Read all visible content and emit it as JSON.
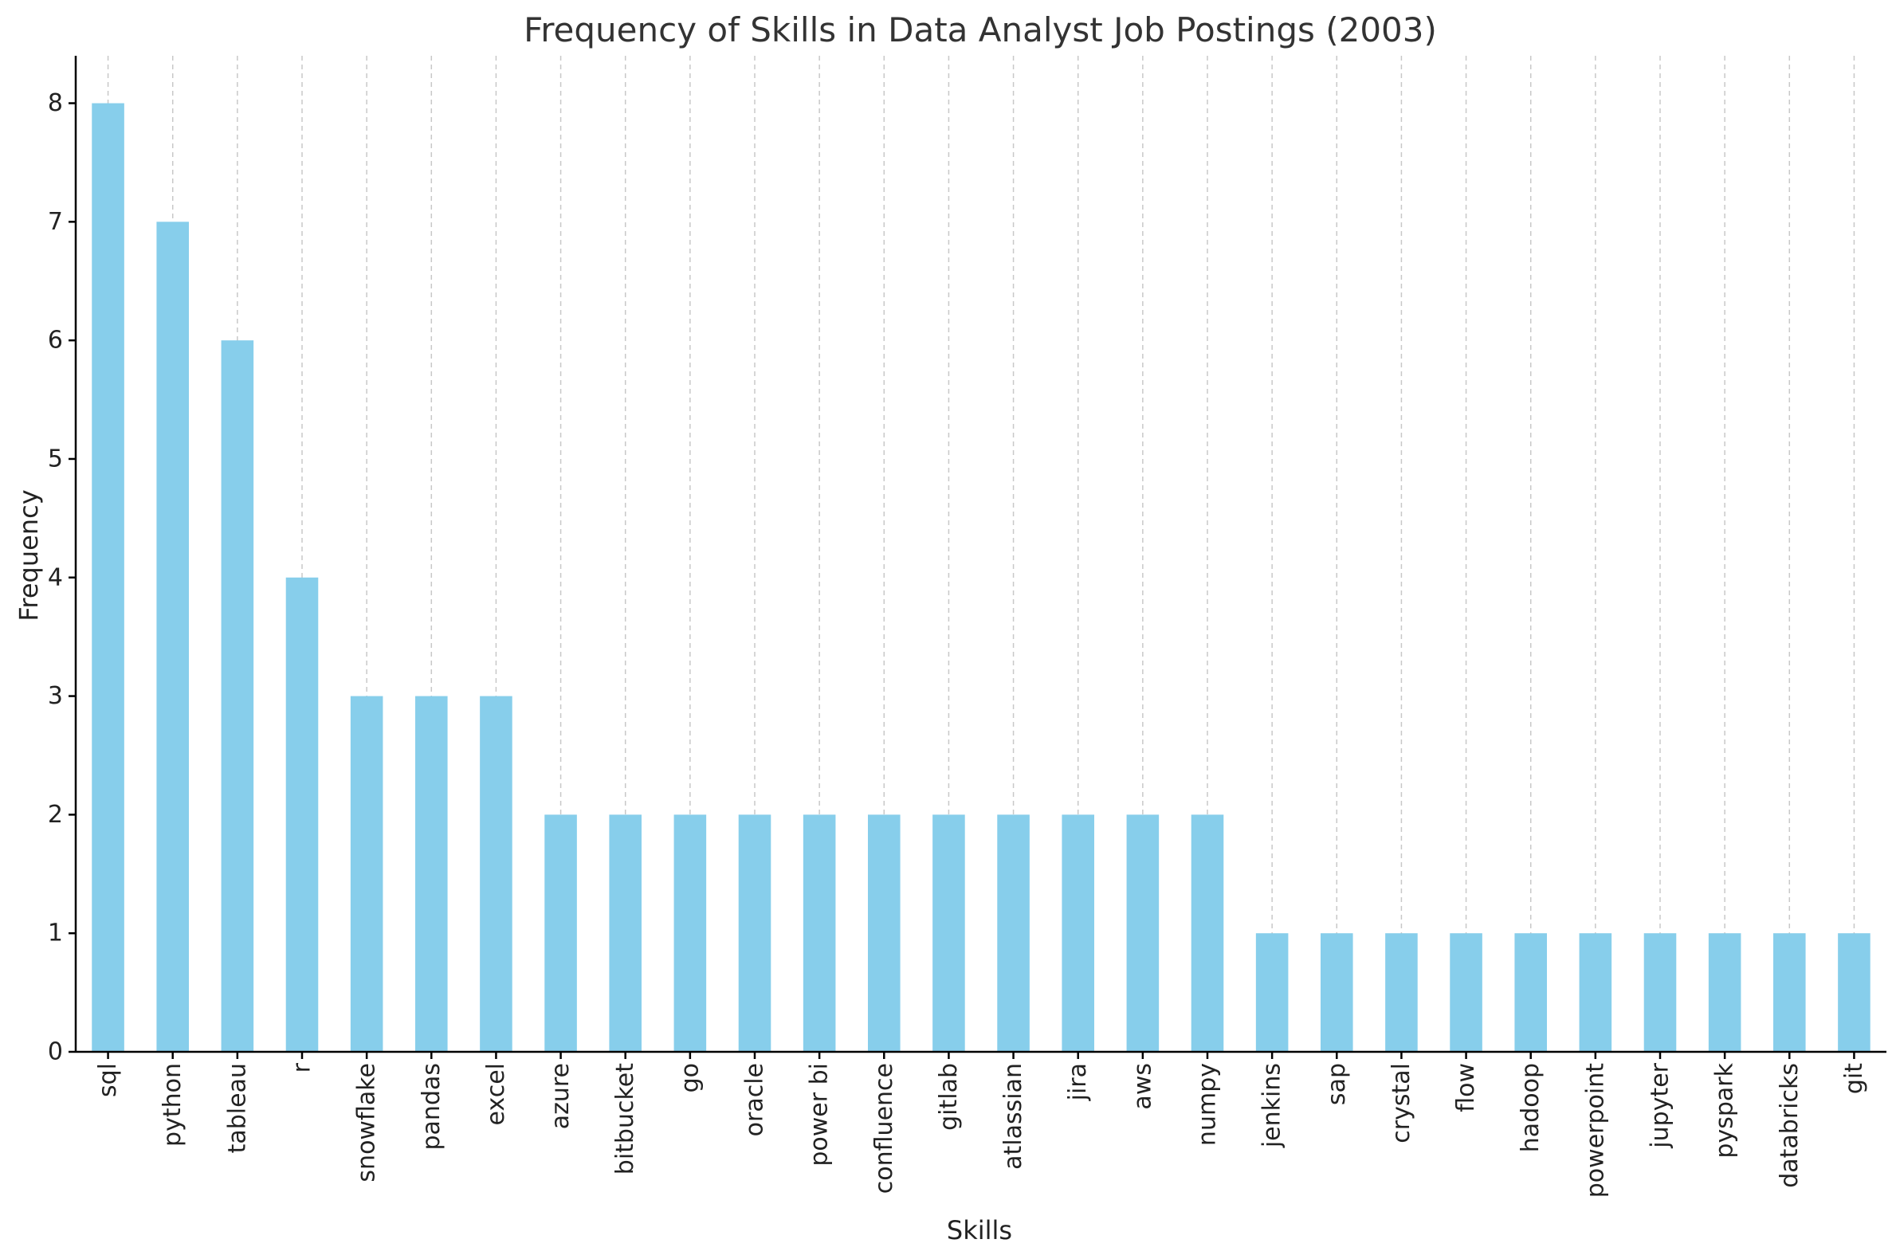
{
  "chart_data": {
    "type": "bar",
    "title": "Frequency of Skills in Data Analyst Job Postings (2003)",
    "xlabel": "Skills",
    "ylabel": "Frequency",
    "categories": [
      "sql",
      "python",
      "tableau",
      "r",
      "snowflake",
      "pandas",
      "excel",
      "azure",
      "bitbucket",
      "go",
      "oracle",
      "power bi",
      "confluence",
      "gitlab",
      "atlassian",
      "jira",
      "aws",
      "numpy",
      "jenkins",
      "sap",
      "crystal",
      "flow",
      "hadoop",
      "powerpoint",
      "jupyter",
      "pyspark",
      "databricks",
      "git"
    ],
    "values": [
      8,
      7,
      6,
      4,
      3,
      3,
      3,
      2,
      2,
      2,
      2,
      2,
      2,
      2,
      2,
      2,
      2,
      2,
      1,
      1,
      1,
      1,
      1,
      1,
      1,
      1,
      1,
      1
    ],
    "ylim": [
      0,
      8.4
    ],
    "yticks": [
      0,
      1,
      2,
      3,
      4,
      5,
      6,
      7,
      8
    ],
    "grid": "vertical dashed",
    "bar_color": "#87CEEB"
  }
}
